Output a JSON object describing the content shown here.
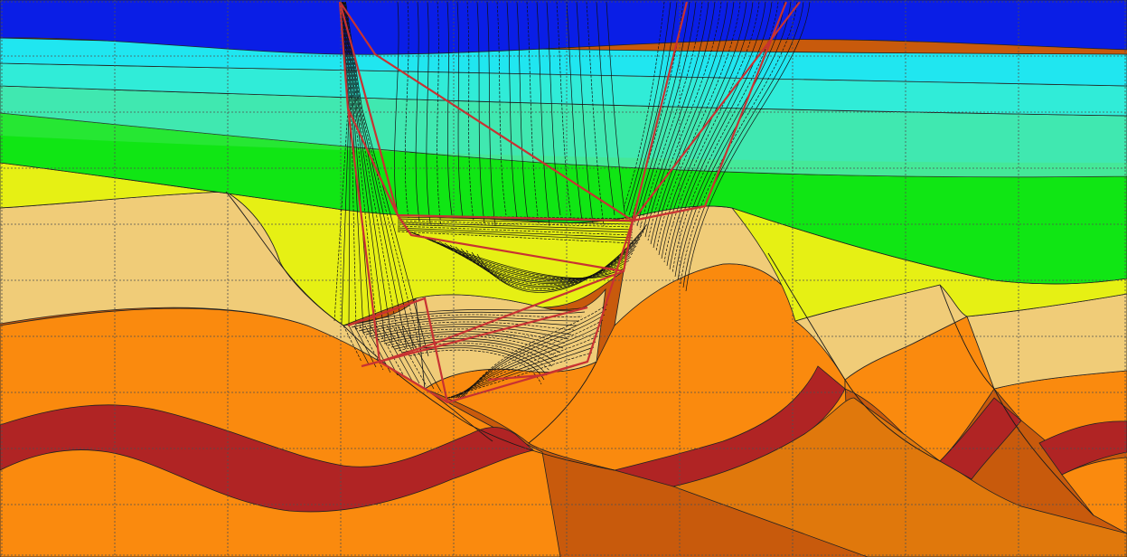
{
  "diagram": {
    "kind": "seismic ray-tracing geological cross-section",
    "grid": true,
    "layer_colors": {
      "water": "#0a1ee6",
      "shallow_1": "#20e6f0",
      "shallow_2": "#30ecd8",
      "shallow_3": "#40e8b0",
      "green_light": "#50e86c",
      "green": "#10e614",
      "yellow": "#e6f014",
      "tan": "#f0cc78",
      "orange": "#fa8a0e",
      "orange_dark": "#e0780c",
      "burnt": "#c85a0c",
      "red_band": "#b02424"
    },
    "ray_color": "#111111",
    "ray_outline_color": "#c83232",
    "grid_color": "#505050"
  }
}
